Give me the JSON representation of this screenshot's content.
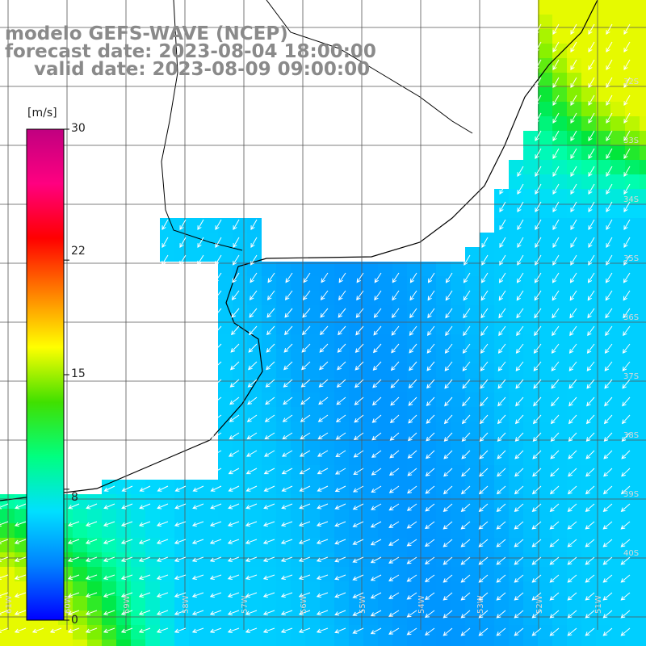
{
  "title": {
    "line1": "modelo GEFS-WAVE (NCEP)",
    "line2": "forecast date: 2023-08-04 18:00:00",
    "line3": "valid date: 2023-08-09 09:00:00"
  },
  "colorbar": {
    "unit": "[m/s]",
    "ticks": [
      {
        "label": "30",
        "value": 30
      },
      {
        "label": "22",
        "value": 22
      },
      {
        "label": "15",
        "value": 15
      },
      {
        "label": "8",
        "value": 8
      },
      {
        "label": "0",
        "value": 0
      }
    ],
    "colors": [
      "#0000ff",
      "#0080ff",
      "#00e0ff",
      "#00ff80",
      "#40e000",
      "#ffff00",
      "#ff8000",
      "#ff0000",
      "#ff0080",
      "#c00080"
    ]
  },
  "map": {
    "land_color": "#ffffff",
    "coast_color": "#000000",
    "grid_color": "#555555",
    "arrow_color": "#ffffff",
    "lat_labels": [
      "32S",
      "33S",
      "34S",
      "35S",
      "36S",
      "37S",
      "38S",
      "39S",
      "40S"
    ],
    "lon_labels": [
      "61W",
      "60W",
      "59W",
      "58W",
      "57W",
      "56W",
      "55W",
      "54W",
      "53W",
      "52W",
      "51W"
    ]
  }
}
